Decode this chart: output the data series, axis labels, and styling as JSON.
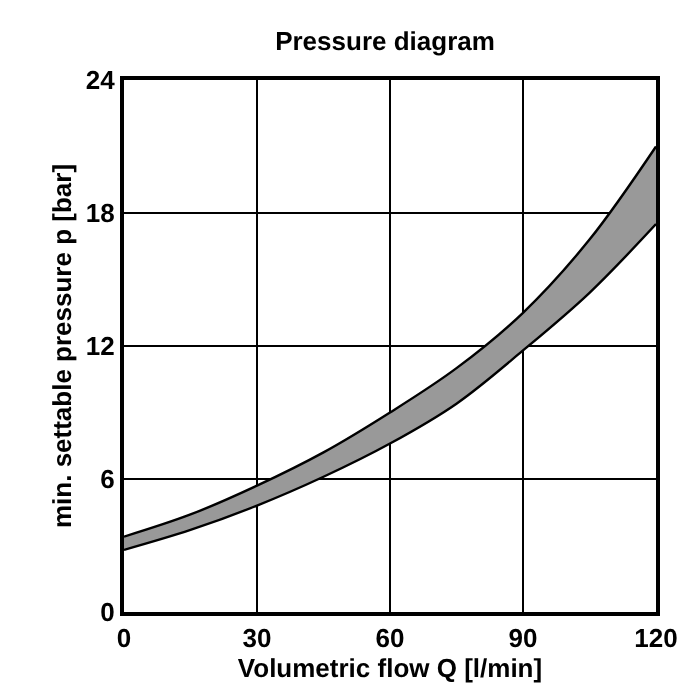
{
  "chart_data": {
    "type": "line",
    "title": "Pressure diagram",
    "xlabel": "Volumetric flow Q [l/min]",
    "ylabel": "min. settable pressure p [bar]",
    "x": [
      0,
      15,
      30,
      45,
      60,
      75,
      90,
      105,
      120
    ],
    "series": [
      {
        "color": "#000000",
        "values": [
          2.8,
          3.7,
          4.8,
          6.1,
          7.6,
          9.4,
          11.8,
          14.4,
          17.5
        ]
      },
      {
        "type": "area",
        "color": "#999999",
        "values": [
          3.4,
          4.4,
          5.7,
          7.2,
          9.0,
          11.0,
          13.5,
          16.8,
          21.0
        ]
      }
    ],
    "xlim": [
      0,
      120
    ],
    "xticks": [
      0,
      30,
      60,
      90,
      120
    ],
    "ylim": [
      0,
      24
    ],
    "yticks": [
      0,
      6,
      12,
      18,
      24
    ],
    "grid": true,
    "marker": "none",
    "line_style": "solid"
  }
}
